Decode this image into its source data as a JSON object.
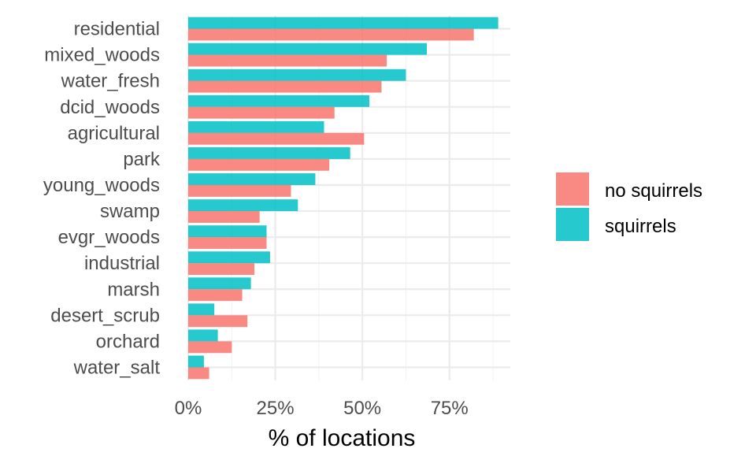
{
  "chart_data": {
    "type": "bar",
    "orientation": "horizontal",
    "title": "",
    "xlabel": "% of locations",
    "ylabel": "",
    "xlim": [
      0,
      0.92
    ],
    "x_ticks": [
      0,
      0.25,
      0.5,
      0.75
    ],
    "x_tick_labels": [
      "0%",
      "25%",
      "50%",
      "75%"
    ],
    "grid": true,
    "legend_position": "right",
    "categories": [
      "residential",
      "mixed_woods",
      "water_fresh",
      "dcid_woods",
      "agricultural",
      "park",
      "young_woods",
      "swamp",
      "evgr_woods",
      "industrial",
      "marsh",
      "desert_scrub",
      "orchard",
      "water_salt"
    ],
    "series": [
      {
        "name": "squirrels",
        "color": "#00BFC4",
        "values": [
          0.89,
          0.685,
          0.625,
          0.52,
          0.39,
          0.465,
          0.365,
          0.315,
          0.225,
          0.235,
          0.18,
          0.075,
          0.085,
          0.045
        ]
      },
      {
        "name": "no squirrels",
        "color": "#F8766D",
        "values": [
          0.82,
          0.57,
          0.555,
          0.42,
          0.505,
          0.405,
          0.295,
          0.205,
          0.225,
          0.19,
          0.155,
          0.17,
          0.125,
          0.06
        ]
      }
    ]
  },
  "legend": {
    "items": [
      {
        "label": "no squirrels",
        "color": "#F8766D"
      },
      {
        "label": "squirrels",
        "color": "#00BFC4"
      }
    ]
  }
}
